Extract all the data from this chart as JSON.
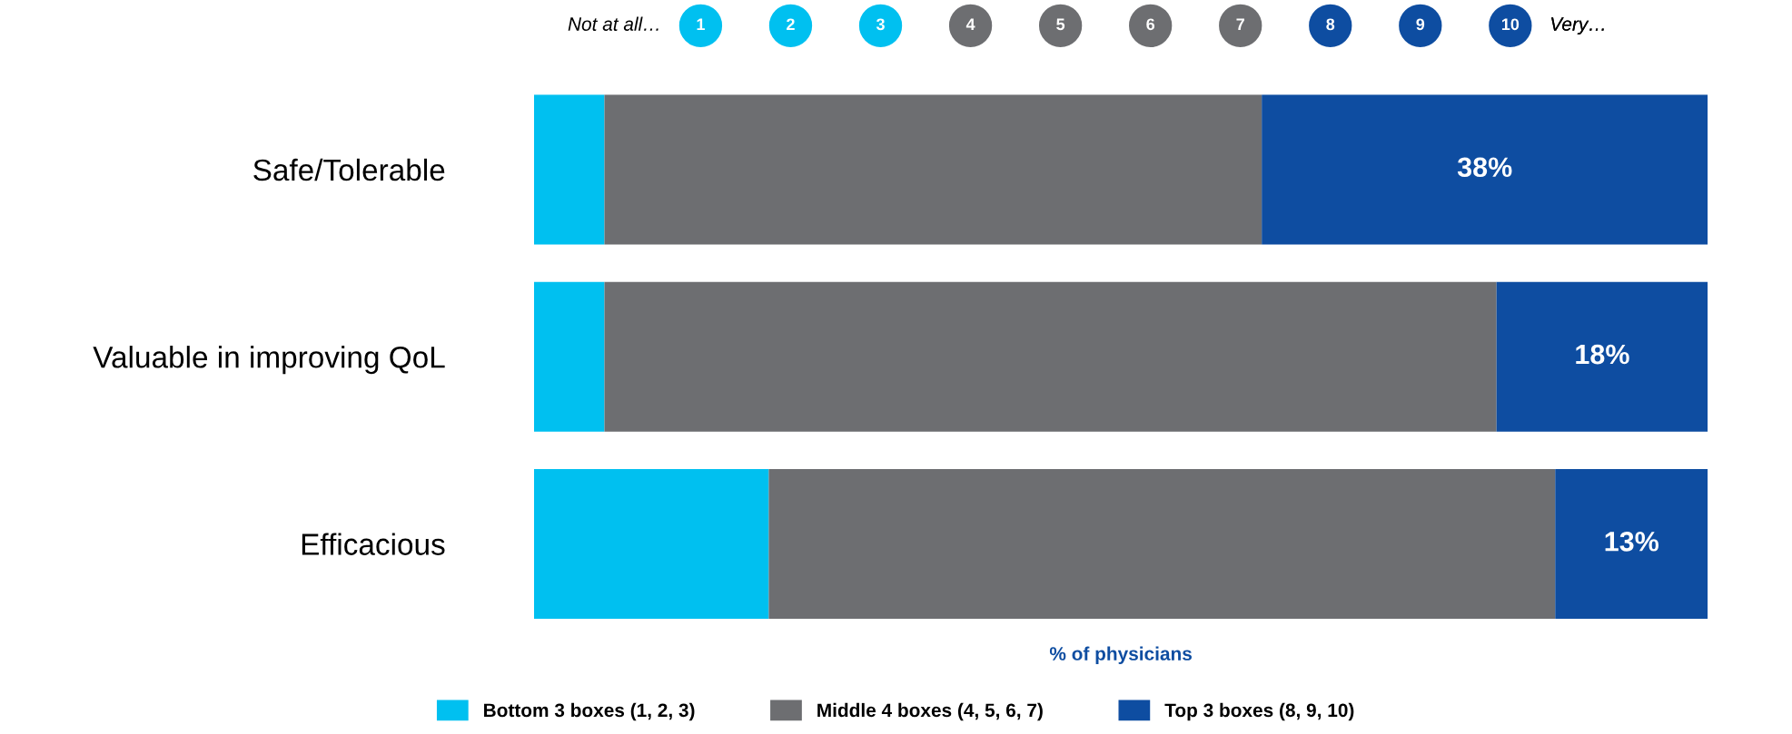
{
  "chart_data": {
    "type": "bar",
    "orientation": "horizontal",
    "stacked": true,
    "categories": [
      "Safe/Tolerable",
      "Valuable in improving QoL",
      "Efficacious"
    ],
    "series": [
      {
        "name": "Bottom 3 boxes (1, 2, 3)",
        "color": "#00c0f0",
        "values": [
          6,
          6,
          20
        ]
      },
      {
        "name": "Middle 4 boxes (4, 5, 6, 7)",
        "color": "#6d6e71",
        "values": [
          56,
          76,
          67
        ]
      },
      {
        "name": "Top 3 boxes (8, 9, 10)",
        "color": "#0e4da1",
        "values": [
          38,
          18,
          13
        ],
        "value_labels": [
          "38%",
          "18%",
          "13%"
        ]
      }
    ],
    "xlim": [
      0,
      100
    ],
    "xlabel": "% of physicians",
    "tick_labels": "y",
    "legend": "bottom",
    "grid": false,
    "annotations": [
      "Not at all…",
      "1",
      "2",
      "3",
      "4",
      "5",
      "6",
      "7",
      "8",
      "9",
      "10",
      "Very…"
    ]
  }
}
